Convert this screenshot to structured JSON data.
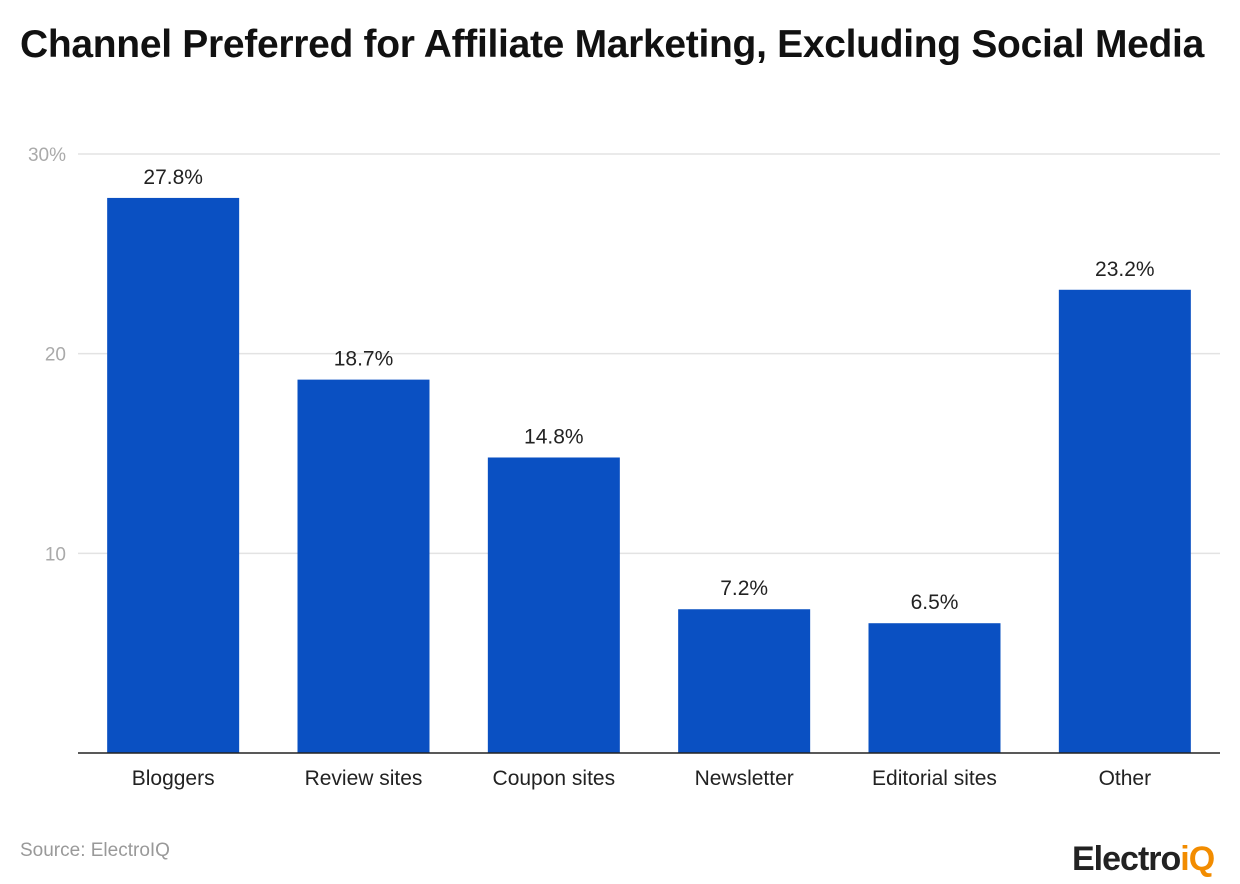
{
  "chart_data": {
    "type": "bar",
    "title": "Channel Preferred for Affiliate Marketing, Excluding Social Media",
    "categories": [
      "Bloggers",
      "Review sites",
      "Coupon sites",
      "Newsletter",
      "Editorial sites",
      "Other"
    ],
    "values": [
      27.8,
      18.7,
      14.8,
      7.2,
      6.5,
      23.2
    ],
    "data_labels": [
      "27.8%",
      "18.7%",
      "14.8%",
      "7.2%",
      "6.5%",
      "23.2%"
    ],
    "yticks": [
      10,
      20,
      30
    ],
    "ytick_labels": [
      "10",
      "20",
      "30%"
    ],
    "ylim": [
      0,
      30
    ],
    "grid": true,
    "bar_color": "#0a50c2",
    "xlabel": "",
    "ylabel": ""
  },
  "footer": {
    "source": "Source: ElectroIQ",
    "logo_main": "Electro",
    "logo_accent": "iQ"
  },
  "colors": {
    "accent": "#f28c00"
  }
}
